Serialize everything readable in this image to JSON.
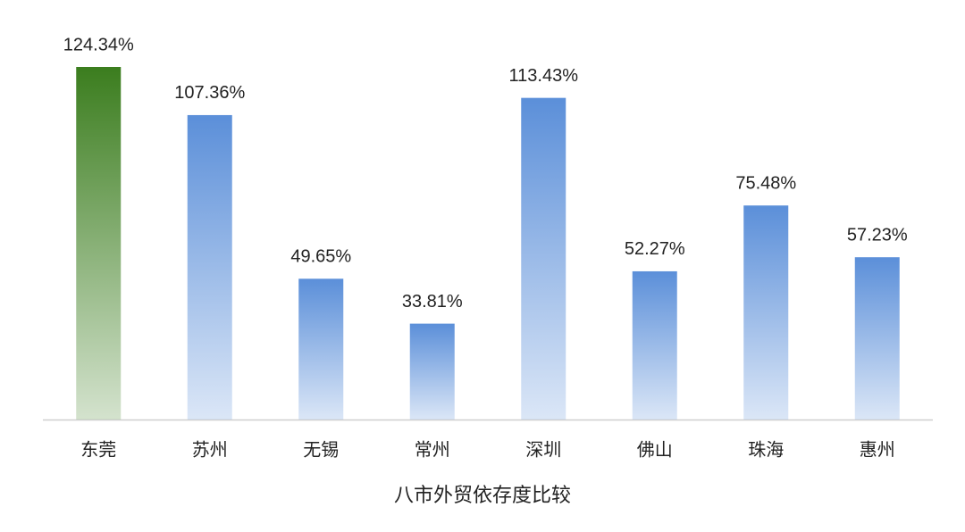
{
  "chart_data": {
    "type": "bar",
    "title": "八市外贸依存度比较",
    "categories": [
      "东莞",
      "苏州",
      "无锡",
      "常州",
      "深圳",
      "佛山",
      "珠海",
      "惠州"
    ],
    "values": [
      124.34,
      107.36,
      49.65,
      33.81,
      113.43,
      52.27,
      75.48,
      57.23
    ],
    "value_labels": [
      "124.34%",
      "107.36%",
      "49.65%",
      "33.81%",
      "113.43%",
      "52.27%",
      "75.48%",
      "57.23%"
    ],
    "colors": [
      "#3b7d1e",
      "#5b8fd9",
      "#5b8fd9",
      "#5b8fd9",
      "#5b8fd9",
      "#5b8fd9",
      "#5b8fd9",
      "#5b8fd9"
    ]
  }
}
